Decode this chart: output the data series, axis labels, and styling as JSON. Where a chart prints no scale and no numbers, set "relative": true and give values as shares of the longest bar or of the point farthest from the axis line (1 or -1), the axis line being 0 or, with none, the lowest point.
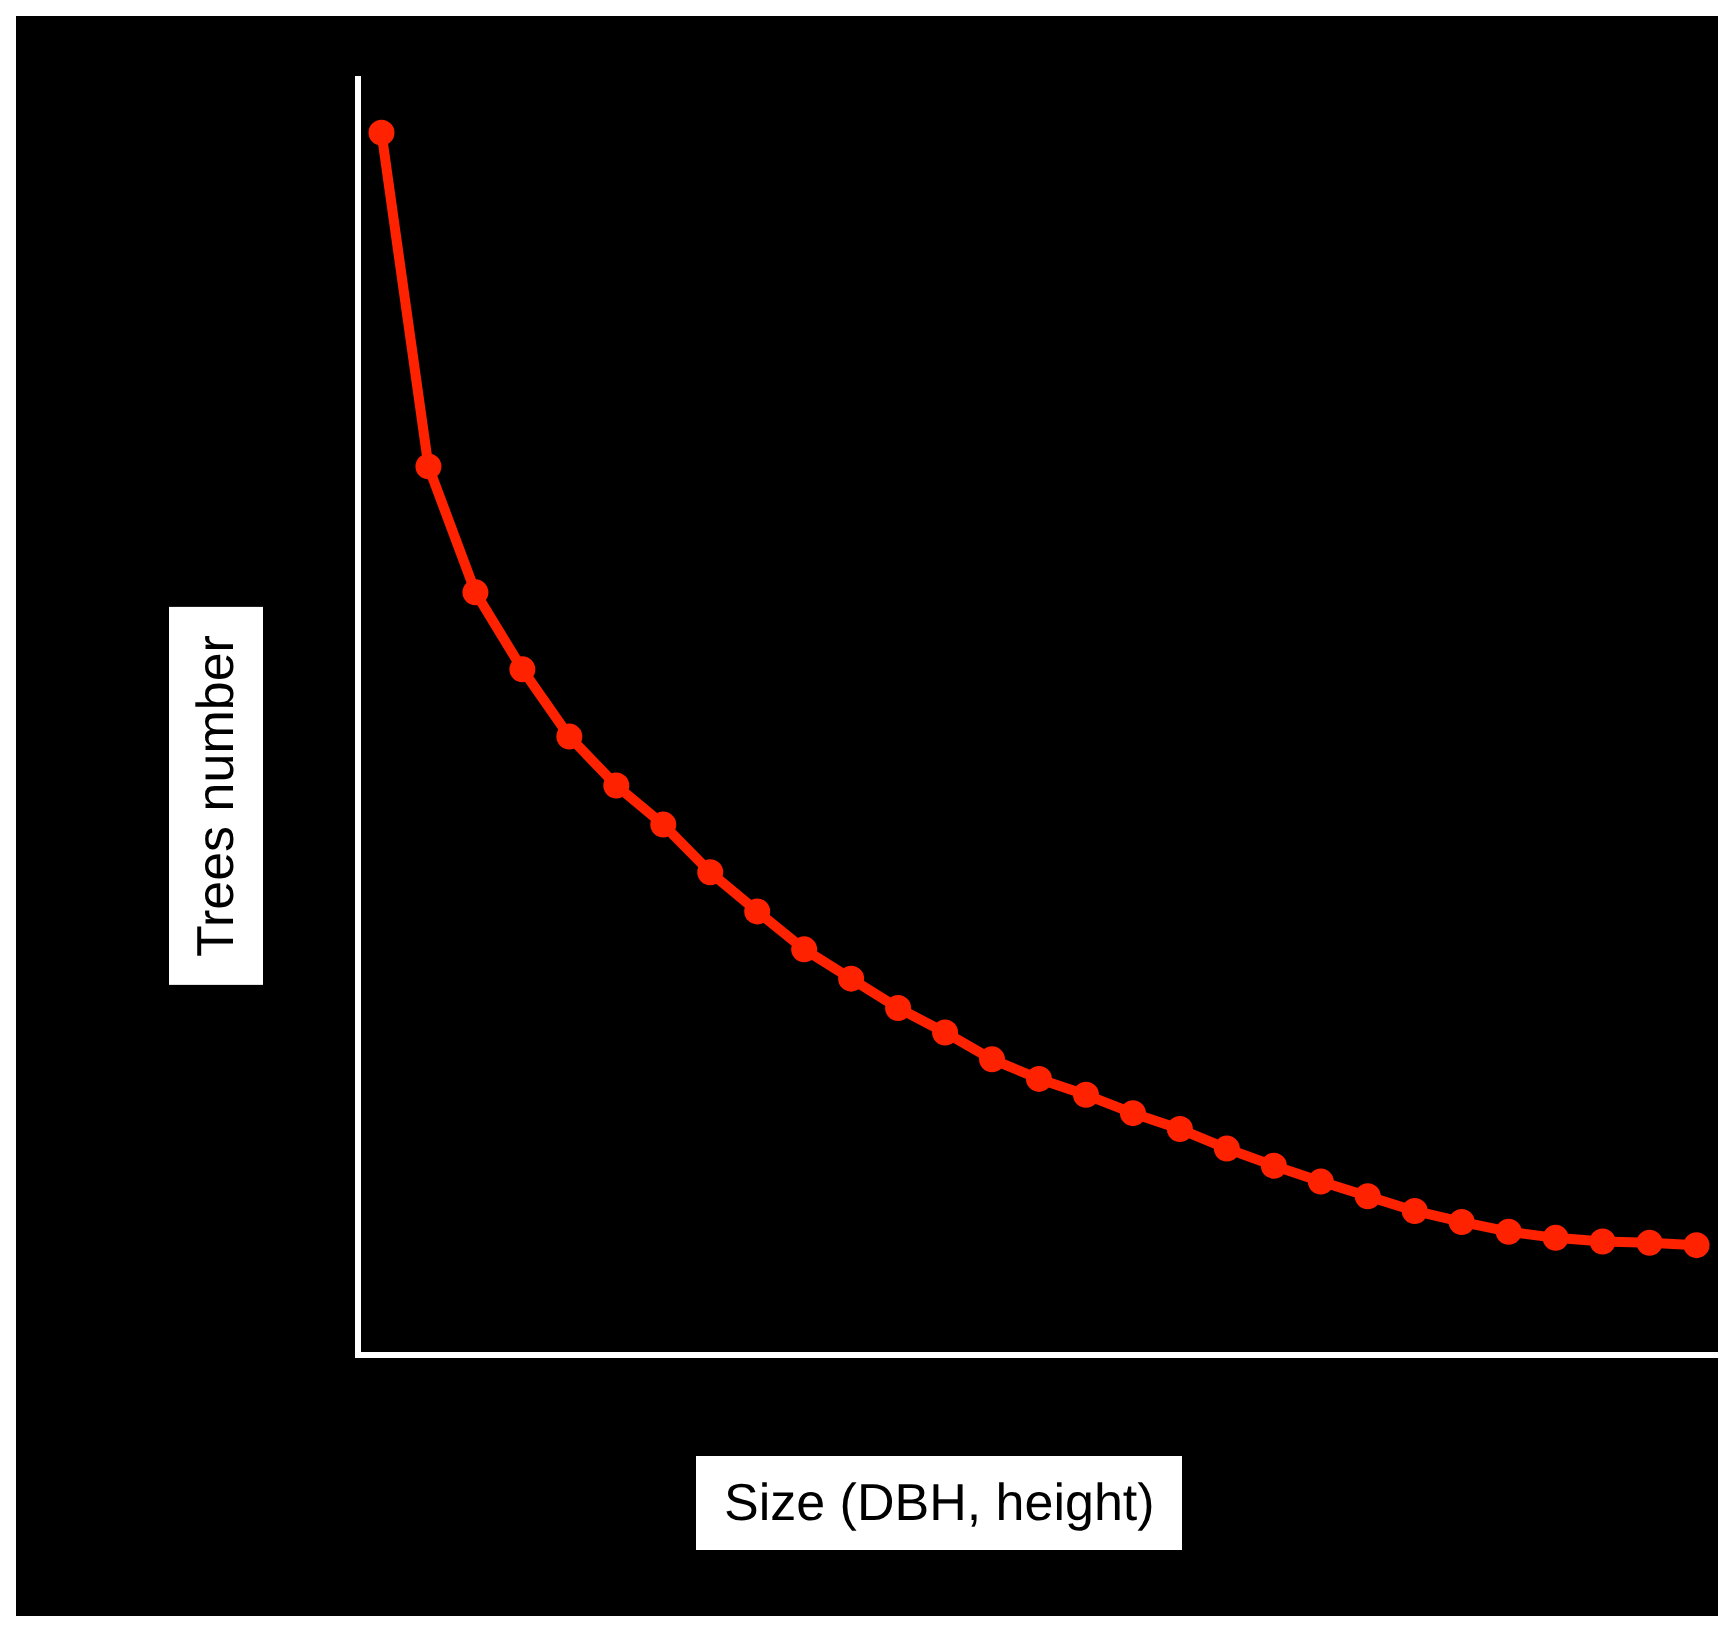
{
  "chart_data": {
    "type": "line",
    "xlabel": "Size (DBH, height)",
    "ylabel": "Trees number",
    "relative": true,
    "marker": "circle",
    "grid": false,
    "legend": false,
    "categories": [
      null,
      null,
      null,
      null,
      null,
      null,
      null,
      null,
      null,
      null,
      null,
      null,
      null,
      null,
      null,
      null,
      null,
      null,
      null,
      null,
      null,
      null,
      null,
      null,
      null,
      null,
      null,
      null,
      null
    ],
    "series": [
      {
        "color": "#ff2200",
        "values": [
          1,
          0.727,
          0.624,
          0.561,
          0.506,
          0.466,
          0.434,
          0.395,
          0.363,
          0.332,
          0.308,
          0.284,
          0.264,
          0.242,
          0.226,
          0.213,
          0.198,
          0.185,
          0.169,
          0.155,
          0.142,
          0.13,
          0.118,
          0.109,
          0.101,
          0.096,
          0.093,
          0.092,
          0.09
        ]
      }
    ]
  }
}
